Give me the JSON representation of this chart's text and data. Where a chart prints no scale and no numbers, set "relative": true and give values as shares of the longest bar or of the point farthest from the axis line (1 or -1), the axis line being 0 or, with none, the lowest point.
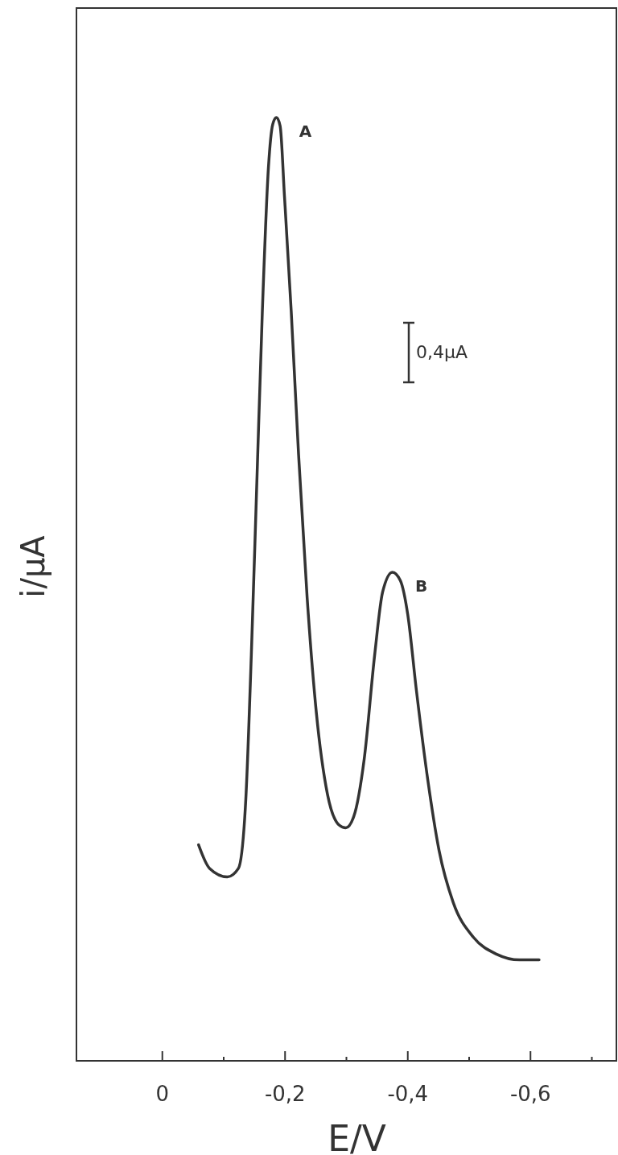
{
  "chart_data": {
    "type": "line",
    "xlabel": "E/V",
    "ylabel": "i/µA",
    "relative": true,
    "color": "#333333",
    "x": [
      -0.059,
      -0.077,
      -0.106,
      -0.124,
      -0.136,
      -0.145,
      -0.154,
      -0.163,
      -0.173,
      -0.18,
      -0.186,
      -0.192,
      -0.199,
      -0.21,
      -0.222,
      -0.236,
      -0.251,
      -0.269,
      -0.288,
      -0.299,
      -0.312,
      -0.329,
      -0.346,
      -0.359,
      -0.375,
      -0.388,
      -0.4,
      -0.414,
      -0.433,
      -0.451,
      -0.474,
      -0.507,
      -0.545,
      -0.582,
      -0.614
    ],
    "values": [
      0.229,
      0.204,
      0.195,
      0.204,
      0.277,
      0.43,
      0.613,
      0.795,
      0.948,
      0.993,
      1.0,
      0.991,
      0.917,
      0.795,
      0.643,
      0.491,
      0.369,
      0.283,
      0.25,
      0.247,
      0.259,
      0.32,
      0.43,
      0.497,
      0.518,
      0.509,
      0.473,
      0.393,
      0.296,
      0.223,
      0.168,
      0.131,
      0.113,
      0.107,
      0.107
    ],
    "xlim": [
      0.14,
      -0.74
    ],
    "xticks": [
      {
        "value": 0,
        "label": "0"
      },
      {
        "value": -0.1,
        "label": null
      },
      {
        "value": -0.2,
        "label": "-0,2"
      },
      {
        "value": -0.3,
        "label": null
      },
      {
        "value": -0.4,
        "label": "-0,4"
      },
      {
        "value": -0.5,
        "label": null
      },
      {
        "value": -0.6,
        "label": "-0,6"
      },
      {
        "value": -0.7,
        "label": null
      }
    ],
    "annotations": [
      {
        "text": "A",
        "x": -0.186,
        "y": 1.0
      },
      {
        "text": "B",
        "x": -0.375,
        "y": 0.518
      },
      "0,4µA"
    ]
  }
}
